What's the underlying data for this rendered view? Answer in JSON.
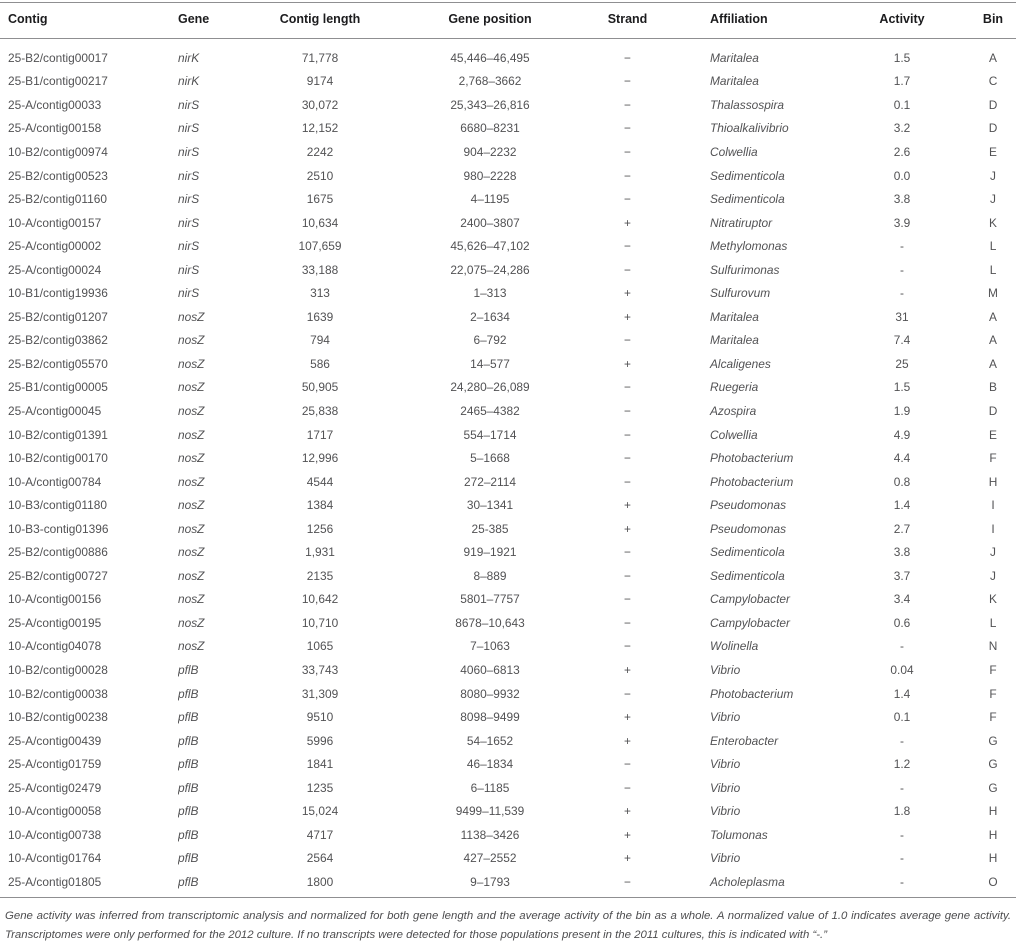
{
  "table": {
    "columns": [
      "Contig",
      "Gene",
      "Contig length",
      "Gene position",
      "Strand",
      "Affiliation",
      "Activity",
      "Bin"
    ],
    "rows": [
      [
        "25-B2/contig00017",
        "nirK",
        "71,778",
        "45,446–46,495",
        "−",
        "Maritalea",
        "1.5",
        "A"
      ],
      [
        "25-B1/contig00217",
        "nirK",
        "9174",
        "2,768–3662",
        "−",
        "Maritalea",
        "1.7",
        "C"
      ],
      [
        "25-A/contig00033",
        "nirS",
        "30,072",
        "25,343–26,816",
        "−",
        "Thalassospira",
        "0.1",
        "D"
      ],
      [
        "25-A/contig00158",
        "nirS",
        "12,152",
        "6680–8231",
        "−",
        "Thioalkalivibrio",
        "3.2",
        "D"
      ],
      [
        "10-B2/contig00974",
        "nirS",
        "2242",
        "904–2232",
        "−",
        "Colwellia",
        "2.6",
        "E"
      ],
      [
        "25-B2/contig00523",
        "nirS",
        "2510",
        "980–2228",
        "−",
        "Sedimenticola",
        "0.0",
        "J"
      ],
      [
        "25-B2/contig01160",
        "nirS",
        "1675",
        "4–1195",
        "−",
        "Sedimenticola",
        "3.8",
        "J"
      ],
      [
        "10-A/contig00157",
        "nirS",
        "10,634",
        "2400–3807",
        "+",
        "Nitratiruptor",
        "3.9",
        "K"
      ],
      [
        "25-A/contig00002",
        "nirS",
        "107,659",
        "45,626–47,102",
        "−",
        "Methylomonas",
        "-",
        "L"
      ],
      [
        "25-A/contig00024",
        "nirS",
        "33,188",
        "22,075–24,286",
        "−",
        "Sulfurimonas",
        "-",
        "L"
      ],
      [
        "10-B1/contig19936",
        "nirS",
        "313",
        "1–313",
        "+",
        "Sulfurovum",
        "-",
        "M"
      ],
      [
        "25-B2/contig01207",
        "nosZ",
        "1639",
        "2–1634",
        "+",
        "Maritalea",
        "31",
        "A"
      ],
      [
        "25-B2/contig03862",
        "nosZ",
        "794",
        "6–792",
        "−",
        "Maritalea",
        "7.4",
        "A"
      ],
      [
        "25-B2/contig05570",
        "nosZ",
        "586",
        "14–577",
        "+",
        "Alcaligenes",
        "25",
        "A"
      ],
      [
        "25-B1/contig00005",
        "nosZ",
        "50,905",
        "24,280–26,089",
        "−",
        "Ruegeria",
        "1.5",
        "B"
      ],
      [
        "25-A/contig00045",
        "nosZ",
        "25,838",
        "2465–4382",
        "−",
        "Azospira",
        "1.9",
        "D"
      ],
      [
        "10-B2/contig01391",
        "nosZ",
        "1717",
        "554–1714",
        "−",
        "Colwellia",
        "4.9",
        "E"
      ],
      [
        "10-B2/contig00170",
        "nosZ",
        "12,996",
        "5–1668",
        "−",
        "Photobacterium",
        "4.4",
        "F"
      ],
      [
        "10-A/contig00784",
        "nosZ",
        "4544",
        "272–2114",
        "−",
        "Photobacterium",
        "0.8",
        "H"
      ],
      [
        "10-B3/contig01180",
        "nosZ",
        "1384",
        "30–1341",
        "+",
        "Pseudomonas",
        "1.4",
        "I"
      ],
      [
        "10-B3-contig01396",
        "nosZ",
        "1256",
        "25-385",
        "+",
        "Pseudomonas",
        "2.7",
        "I"
      ],
      [
        "25-B2/contig00886",
        "nosZ",
        "1,931",
        "919–1921",
        "−",
        "Sedimenticola",
        "3.8",
        "J"
      ],
      [
        "25-B2/contig00727",
        "nosZ",
        "2135",
        "8–889",
        "−",
        "Sedimenticola",
        "3.7",
        "J"
      ],
      [
        "10-A/contig00156",
        "nosZ",
        "10,642",
        "5801–7757",
        "−",
        "Campylobacter",
        "3.4",
        "K"
      ],
      [
        "25-A/contig00195",
        "nosZ",
        "10,710",
        "8678–10,643",
        "−",
        "Campylobacter",
        "0.6",
        "L"
      ],
      [
        "10-A/contig04078",
        "nosZ",
        "1065",
        "7–1063",
        "−",
        "Wolinella",
        "-",
        "N"
      ],
      [
        "10-B2/contig00028",
        "pflB",
        "33,743",
        "4060–6813",
        "+",
        "Vibrio",
        "0.04",
        "F"
      ],
      [
        "10-B2/contig00038",
        "pflB",
        "31,309",
        "8080–9932",
        "−",
        "Photobacterium",
        "1.4",
        "F"
      ],
      [
        "10-B2/contig00238",
        "pflB",
        "9510",
        "8098–9499",
        "+",
        "Vibrio",
        "0.1",
        "F"
      ],
      [
        "25-A/contig00439",
        "pflB",
        "5996",
        "54–1652",
        "+",
        "Enterobacter",
        "-",
        "G"
      ],
      [
        "25-A/contig01759",
        "pflB",
        "1841",
        "46–1834",
        "−",
        "Vibrio",
        "1.2",
        "G"
      ],
      [
        "25-A/contig02479",
        "pflB",
        "1235",
        "6–1185",
        "−",
        "Vibrio",
        "-",
        "G"
      ],
      [
        "10-A/contig00058",
        "pflB",
        "15,024",
        "9499–11,539",
        "+",
        "Vibrio",
        "1.8",
        "H"
      ],
      [
        "10-A/contig00738",
        "pflB",
        "4717",
        "1138–3426",
        "+",
        "Tolumonas",
        "-",
        "H"
      ],
      [
        "10-A/contig01764",
        "pflB",
        "2564",
        "427–2552",
        "+",
        "Vibrio",
        "-",
        "H"
      ],
      [
        "25-A/contig01805",
        "pflB",
        "1800",
        "9–1793",
        "−",
        "Acholeplasma",
        "-",
        "O"
      ]
    ],
    "footnote": "Gene activity was inferred from transcriptomic analysis and normalized for both gene length and the average activity of the bin as a whole. A normalized value of 1.0 indicates average gene activity. Transcriptomes were only performed for the 2012 culture. If no transcripts were detected for those populations present in the 2011 cultures, this is indicated with “-.”",
    "rule_color": "#8f8f91",
    "header_text_color": "#1c1c1e",
    "body_text_color": "#525254"
  }
}
